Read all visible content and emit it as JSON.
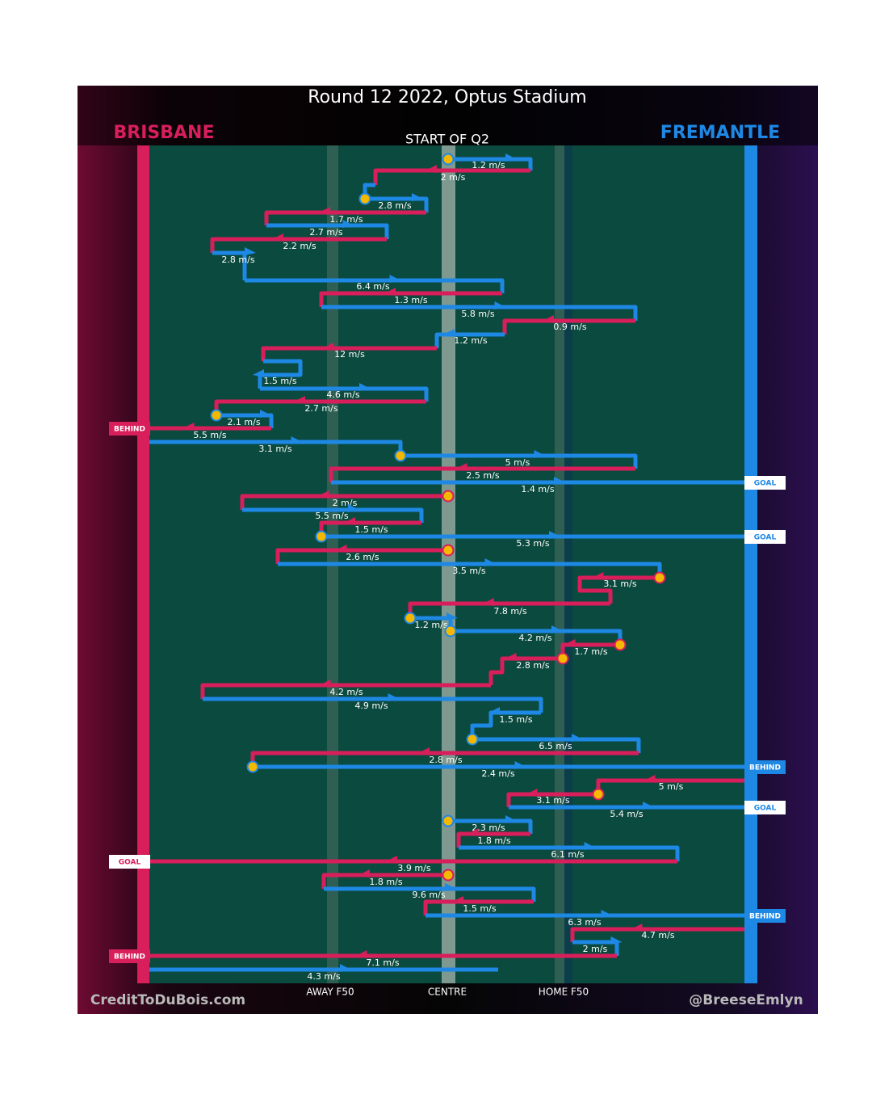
{
  "header": {
    "title": "Round 12 2022, Optus Stadium",
    "subtitle": "START OF Q2"
  },
  "teams": [
    {
      "name": "BRISBANE",
      "color": "#d81e5b"
    },
    {
      "name": "FREMANTLE",
      "color": "#1e88e5"
    }
  ],
  "field_labels": [
    "AWAY F50",
    "CENTRE",
    "HOME F50"
  ],
  "footer": {
    "left": "CreditToDuBois.com",
    "right": "@BreeseEmlyn"
  },
  "rows": [
    {
      "team": "FREMANTLE",
      "speed": "1.2 m/s"
    },
    {
      "team": "BRISBANE",
      "speed": "2 m/s"
    },
    {
      "team": "FREMANTLE",
      "speed": "2.8 m/s"
    },
    {
      "team": "BRISBANE",
      "speed": "1.7 m/s"
    },
    {
      "team": "FREMANTLE",
      "speed": "2.7 m/s"
    },
    {
      "team": "BRISBANE",
      "speed": "2.2 m/s"
    },
    {
      "team": "FREMANTLE",
      "speed": "2.8 m/s"
    },
    {
      "team": "FREMANTLE",
      "speed": "6.4 m/s"
    },
    {
      "team": "BRISBANE",
      "speed": "1.3 m/s"
    },
    {
      "team": "FREMANTLE",
      "speed": "5.8 m/s"
    },
    {
      "team": "BRISBANE",
      "speed": "0.9 m/s"
    },
    {
      "team": "FREMANTLE",
      "speed": "1.2 m/s"
    },
    {
      "team": "BRISBANE",
      "speed": "12 m/s"
    },
    {
      "team": "FREMANTLE",
      "speed": "1.5 m/s"
    },
    {
      "team": "FREMANTLE",
      "speed": "4.6 m/s"
    },
    {
      "team": "BRISBANE",
      "speed": "2.7 m/s"
    },
    {
      "team": "FREMANTLE",
      "speed": "2.1 m/s"
    },
    {
      "team": "BRISBANE",
      "speed": "5.5 m/s",
      "outcome": "BEHIND"
    },
    {
      "team": "FREMANTLE",
      "speed": "3.1 m/s"
    },
    {
      "team": "FREMANTLE",
      "speed": "5 m/s"
    },
    {
      "team": "BRISBANE",
      "speed": "2.5 m/s"
    },
    {
      "team": "FREMANTLE",
      "speed": "1.4 m/s",
      "outcome": "GOAL"
    },
    {
      "team": "BRISBANE",
      "speed": "2 m/s"
    },
    {
      "team": "FREMANTLE",
      "speed": "5.5 m/s"
    },
    {
      "team": "BRISBANE",
      "speed": "1.5 m/s"
    },
    {
      "team": "FREMANTLE",
      "speed": "5.3 m/s",
      "outcome": "GOAL"
    },
    {
      "team": "BRISBANE",
      "speed": "2.6 m/s"
    },
    {
      "team": "FREMANTLE",
      "speed": "3.5 m/s"
    },
    {
      "team": "BRISBANE",
      "speed": "3.1 m/s"
    },
    {
      "team": "BRISBANE",
      "speed": "7.8 m/s"
    },
    {
      "team": "FREMANTLE",
      "speed": "1.2 m/s"
    },
    {
      "team": "FREMANTLE",
      "speed": "4.2 m/s"
    },
    {
      "team": "BRISBANE",
      "speed": "1.7 m/s"
    },
    {
      "team": "BRISBANE",
      "speed": "2.8 m/s"
    },
    {
      "team": "BRISBANE",
      "speed": "4.2 m/s"
    },
    {
      "team": "FREMANTLE",
      "speed": "4.9 m/s"
    },
    {
      "team": "FREMANTLE",
      "speed": "1.5 m/s"
    },
    {
      "team": "FREMANTLE",
      "speed": "6.5 m/s"
    },
    {
      "team": "BRISBANE",
      "speed": "2.8 m/s"
    },
    {
      "team": "FREMANTLE",
      "speed": "2.4 m/s",
      "outcome": "BEHIND"
    },
    {
      "team": "BRISBANE",
      "speed": "5 m/s"
    },
    {
      "team": "BRISBANE",
      "speed": "3.1 m/s"
    },
    {
      "team": "FREMANTLE",
      "speed": "5.4 m/s",
      "outcome": "GOAL"
    },
    {
      "team": "FREMANTLE",
      "speed": "2.3 m/s"
    },
    {
      "team": "BRISBANE",
      "speed": "1.8 m/s"
    },
    {
      "team": "FREMANTLE",
      "speed": "6.1 m/s"
    },
    {
      "team": "BRISBANE",
      "speed": "3.9 m/s",
      "outcome": "GOAL"
    },
    {
      "team": "BRISBANE",
      "speed": "1.8 m/s"
    },
    {
      "team": "FREMANTLE",
      "speed": "9.6 m/s"
    },
    {
      "team": "BRISBANE",
      "speed": "1.5 m/s"
    },
    {
      "team": "FREMANTLE",
      "speed": "6.3 m/s",
      "outcome": "BEHIND"
    },
    {
      "team": "BRISBANE",
      "speed": "4.7 m/s"
    },
    {
      "team": "FREMANTLE",
      "speed": "2 m/s"
    },
    {
      "team": "BRISBANE",
      "speed": "7.1 m/s",
      "outcome": "BEHIND"
    },
    {
      "team": "FREMANTLE",
      "speed": "4.3 m/s"
    }
  ]
}
